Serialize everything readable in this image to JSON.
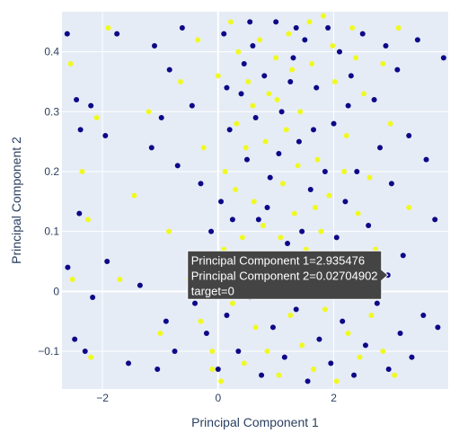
{
  "chart_data": {
    "type": "scatter",
    "xlabel": "Principal Component 1",
    "ylabel": "Principal Component 2",
    "xlim": [
      -2.7,
      3.98
    ],
    "ylim": [
      -0.163,
      0.467
    ],
    "x_ticks": [
      {
        "value": -2,
        "label": "−2"
      },
      {
        "value": 0,
        "label": "0"
      },
      {
        "value": 2,
        "label": "2"
      }
    ],
    "y_ticks": [
      {
        "value": -0.1,
        "label": "−0.1"
      },
      {
        "value": 0,
        "label": "0"
      },
      {
        "value": 0.1,
        "label": "0.1"
      },
      {
        "value": 0.2,
        "label": "0.2"
      },
      {
        "value": 0.3,
        "label": "0.3"
      },
      {
        "value": 0.4,
        "label": "0.4"
      }
    ],
    "grid": true,
    "colors": {
      "plot_bg": "#e5ecf6",
      "grid": "#ffffff",
      "target_0": "#0d0887",
      "target_1": "#f0f921",
      "hover_bg": "#444444"
    },
    "series": [
      {
        "target": 0,
        "points": [
          [
            -2.61,
            0.43
          ],
          [
            -2.45,
            0.32
          ],
          [
            -2.38,
            0.27
          ],
          [
            -2.2,
            0.31
          ],
          [
            -2.4,
            0.13
          ],
          [
            -2.6,
            0.04
          ],
          [
            -2.17,
            -0.01
          ],
          [
            -2.48,
            -0.08
          ],
          [
            -2.3,
            -0.1
          ],
          [
            -1.92,
            0.05
          ],
          [
            -1.95,
            0.26
          ],
          [
            -1.75,
            0.43
          ],
          [
            -1.55,
            -0.12
          ],
          [
            -1.35,
            0.01
          ],
          [
            -1.15,
            0.24
          ],
          [
            -1.1,
            0.41
          ],
          [
            -0.98,
            0.29
          ],
          [
            -0.84,
            0.37
          ],
          [
            -0.7,
            0.21
          ],
          [
            -0.62,
            0.44
          ],
          [
            -0.45,
            0.31
          ],
          [
            -0.3,
            0.18
          ],
          [
            -0.12,
            0.1
          ],
          [
            0.05,
            0.15
          ],
          [
            0.1,
            0.43
          ],
          [
            0.2,
            0.27
          ],
          [
            0.3,
            0.05
          ],
          [
            0.4,
            0.33
          ],
          [
            0.5,
            0.22
          ],
          [
            0.6,
            0.41
          ],
          [
            0.7,
            0.12
          ],
          [
            0.8,
            0.36
          ],
          [
            0.9,
            0.19
          ],
          [
            1.0,
            0.45
          ],
          [
            1.1,
            0.3
          ],
          [
            1.2,
            0.08
          ],
          [
            1.3,
            0.39
          ],
          [
            1.4,
            0.25
          ],
          [
            1.5,
            0.42
          ],
          [
            1.6,
            0.17
          ],
          [
            1.7,
            0.34
          ],
          [
            1.8,
            0.06
          ],
          [
            1.9,
            0.44
          ],
          [
            2.0,
            0.28
          ],
          [
            2.1,
            0.4
          ],
          [
            2.2,
            0.15
          ],
          [
            2.3,
            0.36
          ],
          [
            2.4,
            0.2
          ],
          [
            2.5,
            0.43
          ],
          [
            2.6,
            0.11
          ],
          [
            2.7,
            0.32
          ],
          [
            2.8,
            0.24
          ],
          [
            2.9,
            0.41
          ],
          [
            3.0,
            0.18
          ],
          [
            3.1,
            0.37
          ],
          [
            3.2,
            0.06
          ],
          [
            3.3,
            0.26
          ],
          [
            3.45,
            0.42
          ],
          [
            3.6,
            0.22
          ],
          [
            3.75,
            0.12
          ],
          [
            3.9,
            0.39
          ],
          [
            -0.4,
            -0.02
          ],
          [
            -0.2,
            -0.07
          ],
          [
            0.0,
            -0.13
          ],
          [
            0.15,
            -0.04
          ],
          [
            0.35,
            -0.1
          ],
          [
            0.55,
            -0.01
          ],
          [
            0.75,
            -0.14
          ],
          [
            0.95,
            -0.06
          ],
          [
            1.15,
            -0.11
          ],
          [
            1.35,
            -0.03
          ],
          [
            1.55,
            -0.15
          ],
          [
            1.75,
            -0.08
          ],
          [
            1.95,
            -0.12
          ],
          [
            2.15,
            -0.05
          ],
          [
            2.35,
            -0.14
          ],
          [
            2.55,
            -0.09
          ],
          [
            2.75,
            -0.02
          ],
          [
            2.95,
            -0.13
          ],
          [
            3.15,
            -0.07
          ],
          [
            3.35,
            -0.11
          ],
          [
            3.55,
            -0.04
          ],
          [
            3.8,
            -0.06
          ],
          [
            -0.9,
            -0.05
          ],
          [
            -1.05,
            -0.13
          ],
          [
            -0.75,
            -0.1
          ],
          [
            0.45,
            0.38
          ],
          [
            0.65,
            0.29
          ],
          [
            0.85,
            0.14
          ],
          [
            1.05,
            0.23
          ],
          [
            1.25,
            0.35
          ],
          [
            1.45,
            0.1
          ],
          [
            1.65,
            0.27
          ],
          [
            1.85,
            0.2
          ],
          [
            2.05,
            0.09
          ],
          [
            2.25,
            0.31
          ],
          [
            0.25,
            0.12
          ],
          [
            0.15,
            0.34
          ],
          [
            0.55,
            0.45
          ],
          [
            0.9,
            0.06
          ],
          [
            1.35,
            0.44
          ],
          [
            2.45,
            0.05
          ],
          [
            2.935476,
            0.02704902
          ]
        ]
      },
      {
        "target": 1,
        "points": [
          [
            -2.55,
            0.38
          ],
          [
            -2.35,
            0.2
          ],
          [
            -2.25,
            0.12
          ],
          [
            -2.1,
            0.29
          ],
          [
            -2.52,
            0.02
          ],
          [
            -2.2,
            -0.11
          ],
          [
            -1.9,
            0.44
          ],
          [
            -1.7,
            0.02
          ],
          [
            -1.45,
            0.16
          ],
          [
            -1.2,
            0.3
          ],
          [
            -1.0,
            -0.07
          ],
          [
            -0.85,
            0.1
          ],
          [
            -0.65,
            0.35
          ],
          [
            -0.5,
            0.02
          ],
          [
            -0.35,
            0.42
          ],
          [
            -0.25,
            0.24
          ],
          [
            -0.1,
            -0.13
          ],
          [
            0.0,
            0.36
          ],
          [
            0.12,
            0.2
          ],
          [
            0.22,
            0.45
          ],
          [
            0.32,
            0.28
          ],
          [
            0.42,
            0.09
          ],
          [
            0.52,
            0.35
          ],
          [
            0.62,
            0.15
          ],
          [
            0.72,
            0.42
          ],
          [
            0.82,
            0.25
          ],
          [
            0.92,
            0.04
          ],
          [
            1.02,
            0.32
          ],
          [
            1.12,
            0.18
          ],
          [
            1.22,
            0.43
          ],
          [
            1.32,
            0.13
          ],
          [
            1.42,
            0.3
          ],
          [
            1.52,
            0.07
          ],
          [
            1.62,
            0.38
          ],
          [
            1.72,
            0.22
          ],
          [
            1.82,
            0.46
          ],
          [
            1.92,
            0.16
          ],
          [
            2.02,
            0.35
          ],
          [
            2.12,
            0.03
          ],
          [
            2.22,
            0.26
          ],
          [
            2.32,
            0.44
          ],
          [
            2.42,
            0.13
          ],
          [
            2.52,
            0.33
          ],
          [
            2.62,
            0.19
          ],
          [
            2.72,
            0.07
          ],
          [
            2.85,
            0.38
          ],
          [
            2.98,
            0.28
          ],
          [
            3.12,
            0.44
          ],
          [
            3.3,
            0.14
          ],
          [
            -0.3,
            -0.05
          ],
          [
            -0.1,
            -0.1
          ],
          [
            0.05,
            -0.15
          ],
          [
            0.25,
            -0.02
          ],
          [
            0.45,
            -0.12
          ],
          [
            0.65,
            -0.06
          ],
          [
            0.85,
            -0.1
          ],
          [
            1.05,
            -0.14
          ],
          [
            1.25,
            -0.04
          ],
          [
            1.45,
            -0.09
          ],
          [
            1.65,
            -0.13
          ],
          [
            1.85,
            -0.03
          ],
          [
            2.05,
            -0.15
          ],
          [
            2.25,
            -0.07
          ],
          [
            2.45,
            -0.11
          ],
          [
            2.65,
            -0.04
          ],
          [
            2.85,
            -0.1
          ],
          [
            3.05,
            -0.14
          ],
          [
            0.35,
            0.4
          ],
          [
            0.6,
            0.31
          ],
          [
            0.78,
            0.11
          ],
          [
            1.0,
            0.39
          ],
          [
            1.18,
            0.27
          ],
          [
            1.38,
            0.21
          ],
          [
            1.58,
            0.45
          ],
          [
            1.78,
            0.1
          ],
          [
            1.98,
            0.41
          ],
          [
            2.18,
            0.2
          ],
          [
            0.1,
            0.07
          ],
          [
            0.3,
            0.17
          ],
          [
            0.48,
            0.24
          ],
          [
            0.68,
            0.01
          ],
          [
            0.88,
            0.33
          ],
          [
            1.08,
            0.09
          ],
          [
            1.28,
            0.37
          ],
          [
            1.48,
            0.03
          ],
          [
            1.68,
            0.14
          ],
          [
            2.38,
            0.39
          ]
        ]
      }
    ],
    "hover": {
      "lines": [
        "Principal Component 1=2.935476",
        "Principal Component 2=0.02704902",
        "target=0"
      ],
      "x": 2.935476,
      "y": 0.02704902
    }
  }
}
